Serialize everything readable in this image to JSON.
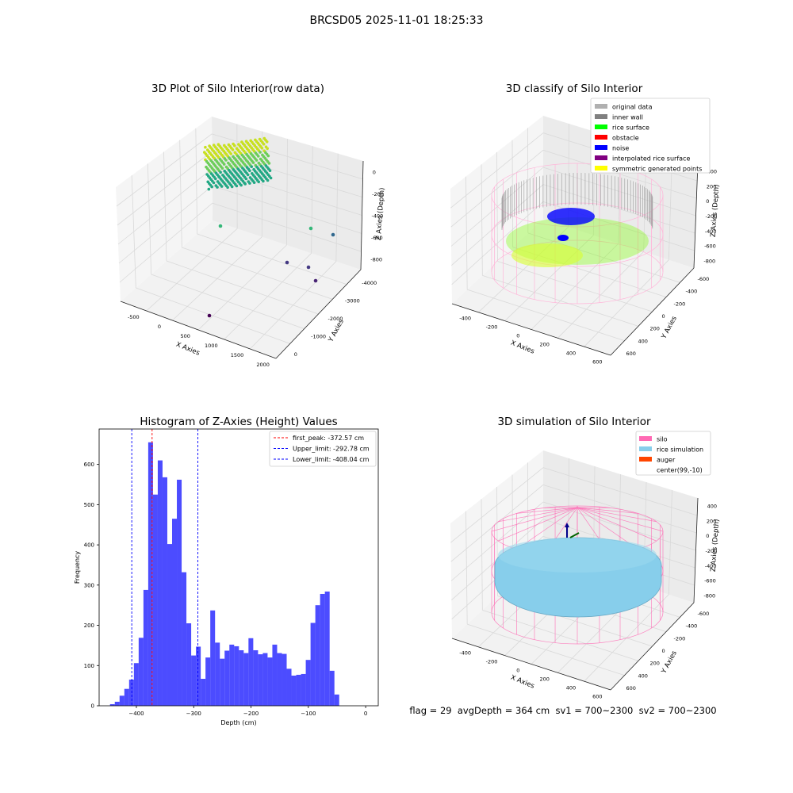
{
  "figure": {
    "suptitle": "BRCSD05 2025-11-01 18:25:33",
    "footer": "flag = 29  avgDepth = 364 cm  sv1 = 700~2300  sv2 = 700~2300"
  },
  "panels": {
    "raw": {
      "title": "3D Plot of Silo Interior(row data)",
      "xlabel": "X Axies",
      "ylabel": "Y Axies",
      "zlabel": "Z Axies (Depth)",
      "xticks": [
        "-500",
        "0",
        "500",
        "1000",
        "1500",
        "2000"
      ],
      "yticks": [
        "0",
        "-1000",
        "-2000",
        "-3000",
        "-4000"
      ],
      "zticks": [
        "0",
        "-200",
        "-400",
        "-600",
        "-800"
      ]
    },
    "classify": {
      "title": "3D classify of Silo Interior",
      "xlabel": "X Axies",
      "ylabel": "Y Axies",
      "zlabel": "Z Axies (Depth)",
      "xticks": [
        "-400",
        "-200",
        "0",
        "200",
        "400",
        "600"
      ],
      "yticks": [
        "600",
        "400",
        "200",
        "0",
        "-200",
        "-400",
        "-600"
      ],
      "zticks": [
        "400",
        "200",
        "0",
        "-200",
        "-400",
        "-600",
        "-800"
      ],
      "legend": [
        {
          "label": "original data",
          "color": "#b0b0b0"
        },
        {
          "label": "inner wall",
          "color": "#808080"
        },
        {
          "label": "rice surface",
          "color": "#00ff00"
        },
        {
          "label": "obstacle",
          "color": "#ff0000"
        },
        {
          "label": "noise",
          "color": "#0000ff"
        },
        {
          "label": "interpolated rice surface",
          "color": "#800080"
        },
        {
          "label": "symmetric generated points",
          "color": "#ffff00"
        }
      ]
    },
    "simulation": {
      "title": "3D simulation of Silo Interior",
      "xlabel": "X Axies",
      "ylabel": "Y Axies",
      "zlabel": "Z Axies (Depth)",
      "xticks": [
        "-400",
        "-200",
        "0",
        "200",
        "400",
        "600"
      ],
      "yticks": [
        "600",
        "400",
        "200",
        "0",
        "-200",
        "-400",
        "-600"
      ],
      "zticks": [
        "400",
        "200",
        "0",
        "-200",
        "-400",
        "-600",
        "-800"
      ],
      "legend": [
        {
          "label": "silo",
          "color": "#ff69b4"
        },
        {
          "label": "rice simulation",
          "color": "#87ceeb"
        },
        {
          "label": "auger",
          "color": "#ff4500"
        },
        {
          "label": "center(99,-10)",
          "color": ""
        }
      ]
    }
  },
  "chart_data": [
    {
      "type": "histogram",
      "title": "Histogram of Z-Axies (Height) Values",
      "xlabel": "Depth (cm)",
      "ylabel": "Frequency",
      "bar_color": "#0000ff",
      "xlim": [
        -465,
        22
      ],
      "ylim": [
        0,
        688
      ],
      "xticks": [
        -400,
        -300,
        -200,
        -100,
        0
      ],
      "yticks": [
        0,
        100,
        200,
        300,
        400,
        500,
        600
      ],
      "bin_edges_start": -446,
      "bin_width": 8.33,
      "counts": [
        4,
        10,
        25,
        42,
        65,
        106,
        169,
        288,
        655,
        525,
        610,
        568,
        402,
        465,
        562,
        332,
        205,
        125,
        147,
        67,
        120,
        237,
        157,
        117,
        137,
        152,
        148,
        138,
        131,
        168,
        138,
        128,
        131,
        120,
        152,
        131,
        129,
        92,
        75,
        77,
        79,
        114,
        206,
        250,
        278,
        284,
        87,
        28
      ],
      "vlines": [
        {
          "label": "first_peak: -372.57 cm",
          "x": -372.57,
          "color": "#ff0000"
        },
        {
          "label": "Upper_limit: -292.78 cm",
          "x": -292.78,
          "color": "#0000ff"
        },
        {
          "label": "Lower_limit: -408.04 cm",
          "x": -408.04,
          "color": "#0000ff"
        }
      ]
    }
  ]
}
